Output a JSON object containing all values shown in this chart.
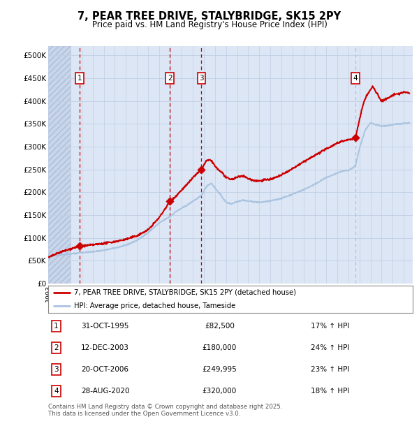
{
  "title": "7, PEAR TREE DRIVE, STALYBRIDGE, SK15 2PY",
  "subtitle": "Price paid vs. HM Land Registry's House Price Index (HPI)",
  "footer": "Contains HM Land Registry data © Crown copyright and database right 2025.\nThis data is licensed under the Open Government Licence v3.0.",
  "legend_line1": "7, PEAR TREE DRIVE, STALYBRIDGE, SK15 2PY (detached house)",
  "legend_line2": "HPI: Average price, detached house, Tameside",
  "transactions": [
    {
      "num": 1,
      "date": "31-OCT-1995",
      "price": 82500,
      "pct": "17%",
      "year_x": 1995.83
    },
    {
      "num": 2,
      "date": "12-DEC-2003",
      "price": 180000,
      "pct": "24%",
      "year_x": 2003.95
    },
    {
      "num": 3,
      "date": "20-OCT-2006",
      "price": 249995,
      "pct": "23%",
      "year_x": 2006.79
    },
    {
      "num": 4,
      "date": "28-AUG-2020",
      "price": 320000,
      "pct": "18%",
      "year_x": 2020.66
    }
  ],
  "ylim": [
    0,
    520000
  ],
  "yticks": [
    0,
    50000,
    100000,
    150000,
    200000,
    250000,
    300000,
    350000,
    400000,
    450000,
    500000
  ],
  "ytick_labels": [
    "£0",
    "£50K",
    "£100K",
    "£150K",
    "£200K",
    "£250K",
    "£300K",
    "£350K",
    "£400K",
    "£450K",
    "£500K"
  ],
  "xlim_start": 1993.0,
  "xlim_end": 2025.8,
  "hpi_line_color": "#aac4e0",
  "price_line_color": "#cc0000",
  "vline_color_red": "#cc0000",
  "vline_color_blue": "#aac4e0",
  "dot_color": "#cc0000",
  "grid_color": "#c0cfe4",
  "plot_bg_color": "#dce6f5"
}
